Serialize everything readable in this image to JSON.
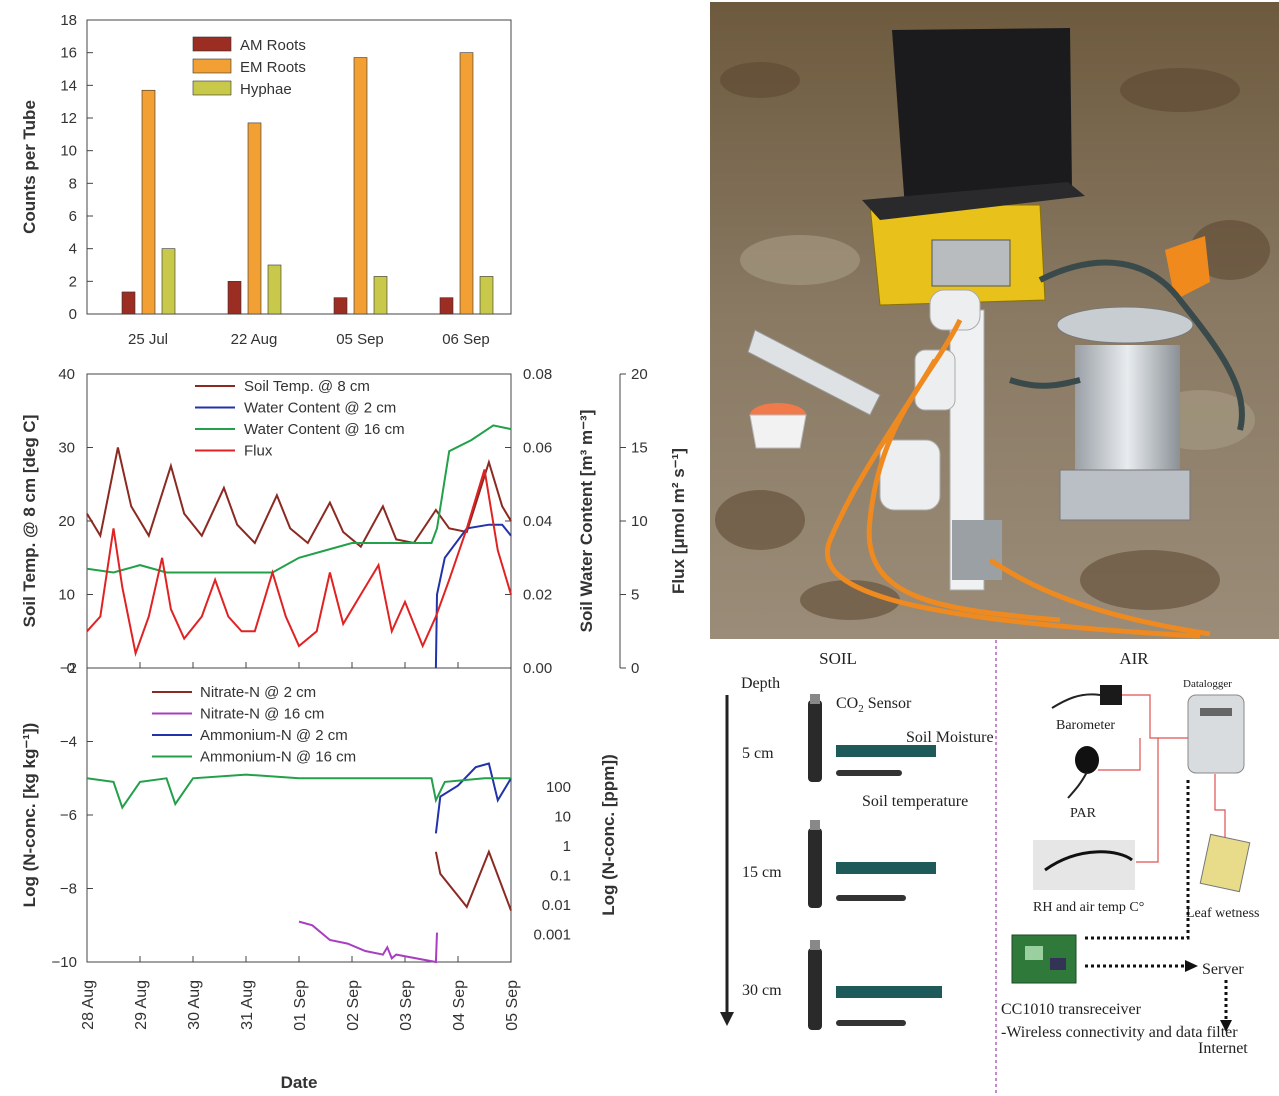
{
  "chart_data": [
    {
      "type": "bar",
      "categories": [
        "25 Jul",
        "22 Aug",
        "05 Sep",
        "06 Sep"
      ],
      "series": [
        {
          "name": "AM Roots",
          "values": [
            1.35,
            2.0,
            1.0,
            1.0
          ],
          "color": "#9b2d22"
        },
        {
          "name": "EM Roots",
          "values": [
            13.7,
            11.7,
            15.7,
            16.0
          ],
          "color": "#f2a033"
        },
        {
          "name": "Hyphae",
          "values": [
            4.0,
            3.0,
            2.3,
            2.3
          ],
          "color": "#c8c84a"
        }
      ],
      "xlabel": "",
      "ylabel": "Counts per Tube",
      "ylim": [
        0,
        18
      ],
      "yticks": [
        0,
        2,
        4,
        6,
        8,
        10,
        12,
        14,
        16,
        18
      ],
      "legend": "top-left",
      "grid": false
    },
    {
      "type": "line",
      "x_ticks": [
        "28 Aug",
        "29 Aug",
        "30 Aug",
        "31 Aug",
        "01 Sep",
        "02 Sep",
        "03 Sep",
        "04 Sep",
        "05 Sep"
      ],
      "left_axis": {
        "label": "Soil Temp. @ 8 cm [deg C]",
        "ylim": [
          0,
          40
        ],
        "ticks": [
          0,
          10,
          20,
          30,
          40
        ]
      },
      "right_axis_1": {
        "label": "Soil Water Content [m³ m⁻³]",
        "ylim": [
          0,
          0.08
        ],
        "ticks": [
          "0.00",
          "0.02",
          "0.04",
          "0.06",
          "0.08"
        ]
      },
      "right_axis_2": {
        "label": "Flux [μmol m² s⁻¹]",
        "ylim": [
          0,
          20
        ],
        "ticks": [
          0,
          5,
          10,
          15,
          20
        ]
      },
      "series": [
        {
          "name": "Soil Temp. @ 8 cm",
          "color": "#8b2a22",
          "axis": "left",
          "x": [
            "28 Aug 00:00",
            "28 Aug 06:00",
            "28 Aug 14:00",
            "28 Aug 20:00",
            "29 Aug 04:00",
            "29 Aug 14:00",
            "29 Aug 20:00",
            "30 Aug 04:00",
            "30 Aug 14:00",
            "30 Aug 20:00",
            "31 Aug 04:00",
            "31 Aug 14:00",
            "31 Aug 20:00",
            "01 Sep 04:00",
            "01 Sep 14:00",
            "01 Sep 20:00",
            "02 Sep 04:00",
            "02 Sep 14:00",
            "02 Sep 20:00",
            "03 Sep 04:00",
            "03 Sep 14:00",
            "03 Sep 20:00",
            "04 Sep 04:00",
            "04 Sep 14:00",
            "04 Sep 20:00",
            "05 Sep 00:00"
          ],
          "y": [
            21,
            18,
            30,
            22,
            18,
            27.5,
            21,
            18,
            24.5,
            19.5,
            17,
            23.5,
            19,
            17,
            22.5,
            18.5,
            16.5,
            22,
            17.5,
            17,
            21.5,
            19,
            18.5,
            28,
            22,
            20
          ]
        },
        {
          "name": "Water Content @ 2 cm",
          "color": "#2233aa",
          "axis": "right_1",
          "x": [
            "03 Sep 14:00",
            "03 Sep 14:30",
            "03 Sep 18:00",
            "04 Sep 04:00",
            "04 Sep 14:00",
            "04 Sep 20:00",
            "05 Sep 00:00"
          ],
          "y": [
            0.0,
            0.02,
            0.03,
            0.038,
            0.039,
            0.039,
            0.036
          ]
        },
        {
          "name": "Water Content @ 16 cm",
          "color": "#22a04a",
          "axis": "right_1",
          "x": [
            "28 Aug 00:00",
            "28 Aug 12:00",
            "29 Aug 00:00",
            "29 Aug 12:00",
            "30 Aug 00:00",
            "30 Aug 12:00",
            "31 Aug 00:00",
            "31 Aug 12:00",
            "01 Sep 00:00",
            "01 Sep 12:00",
            "02 Sep 00:00",
            "02 Sep 12:00",
            "03 Sep 00:00",
            "03 Sep 12:00",
            "03 Sep 14:30",
            "03 Sep 20:00",
            "04 Sep 06:00",
            "04 Sep 16:00",
            "05 Sep 00:00"
          ],
          "y": [
            0.027,
            0.026,
            0.028,
            0.026,
            0.026,
            0.026,
            0.026,
            0.026,
            0.03,
            0.032,
            0.034,
            0.034,
            0.034,
            0.034,
            0.038,
            0.059,
            0.062,
            0.066,
            0.065
          ]
        },
        {
          "name": "Flux",
          "color": "#e02222",
          "axis": "right_2",
          "x": [
            "28 Aug 00:00",
            "28 Aug 06:00",
            "28 Aug 12:00",
            "28 Aug 16:00",
            "28 Aug 22:00",
            "29 Aug 04:00",
            "29 Aug 10:00",
            "29 Aug 14:00",
            "29 Aug 20:00",
            "30 Aug 04:00",
            "30 Aug 10:00",
            "30 Aug 16:00",
            "30 Aug 22:00",
            "31 Aug 04:00",
            "31 Aug 12:00",
            "31 Aug 18:00",
            "01 Sep 00:00",
            "01 Sep 08:00",
            "01 Sep 14:00",
            "01 Sep 20:00",
            "02 Sep 04:00",
            "02 Sep 12:00",
            "02 Sep 18:00",
            "03 Sep 00:00",
            "03 Sep 08:00",
            "03 Sep 14:00",
            "03 Sep 20:00",
            "04 Sep 04:00",
            "04 Sep 12:00",
            "04 Sep 18:00",
            "05 Sep 00:00"
          ],
          "y": [
            2.5,
            3.5,
            9.5,
            5.5,
            1.0,
            3.5,
            7.5,
            4.0,
            2.0,
            3.5,
            6.0,
            3.5,
            2.5,
            2.5,
            6.5,
            3.5,
            1.5,
            2.5,
            6.5,
            3.0,
            5.0,
            7.0,
            2.5,
            4.5,
            1.5,
            3.5,
            6.0,
            9.5,
            13.5,
            8.0,
            5.0
          ]
        }
      ],
      "legend": "top-center",
      "grid": false
    },
    {
      "type": "line",
      "x_ticks": [
        "28 Aug",
        "29 Aug",
        "30 Aug",
        "31 Aug",
        "01 Sep",
        "02 Sep",
        "03 Sep",
        "04 Sep",
        "05 Sep"
      ],
      "left_axis": {
        "label": "Log (N-conc. [kg kg⁻¹])",
        "ylim": [
          -10,
          -2
        ],
        "ticks": [
          -2,
          -4,
          -6,
          -8,
          -10
        ]
      },
      "right_axis": {
        "label": "Log (N-conc. [ppm])",
        "ticks": [
          "100",
          "10",
          "1",
          "0.1",
          "0.01",
          "0.001"
        ]
      },
      "series": [
        {
          "name": "Nitrate-N @ 2 cm",
          "color": "#8b2a22",
          "x": [
            "03 Sep 14:00",
            "03 Sep 16:00",
            "04 Sep 00:00",
            "04 Sep 04:00",
            "04 Sep 10:00",
            "04 Sep 14:00",
            "05 Sep 00:00"
          ],
          "y": [
            -7.0,
            -7.6,
            -8.2,
            -8.5,
            -7.6,
            -7.0,
            -8.6
          ]
        },
        {
          "name": "Nitrate-N @ 16 cm",
          "color": "#a83ec0",
          "x": [
            "01 Sep 00:00",
            "01 Sep 06:00",
            "01 Sep 14:00",
            "01 Sep 22:00",
            "02 Sep 06:00",
            "02 Sep 14:00",
            "02 Sep 16:00",
            "02 Sep 18:00",
            "02 Sep 20:00",
            "03 Sep 14:00",
            "03 Sep 14:30"
          ],
          "y": [
            -8.9,
            -9.0,
            -9.4,
            -9.5,
            -9.7,
            -9.8,
            -9.6,
            -9.9,
            -9.8,
            -10.0,
            -9.2
          ]
        },
        {
          "name": "Ammonium-N @ 2 cm",
          "color": "#2233aa",
          "x": [
            "03 Sep 14:00",
            "03 Sep 16:00",
            "04 Sep 00:00",
            "04 Sep 08:00",
            "04 Sep 14:00",
            "04 Sep 18:00",
            "05 Sep 00:00"
          ],
          "y": [
            -6.5,
            -5.5,
            -5.2,
            -4.7,
            -4.6,
            -5.6,
            -5.0
          ]
        },
        {
          "name": "Ammonium-N @ 16 cm",
          "color": "#22a04a",
          "x": [
            "28 Aug 00:00",
            "28 Aug 12:00",
            "28 Aug 16:00",
            "29 Aug 00:00",
            "29 Aug 12:00",
            "29 Aug 16:00",
            "30 Aug 00:00",
            "31 Aug 00:00",
            "01 Sep 00:00",
            "02 Sep 00:00",
            "03 Sep 00:00",
            "03 Sep 12:00",
            "03 Sep 14:00",
            "03 Sep 18:00",
            "04 Sep 12:00",
            "05 Sep 00:00"
          ],
          "y": [
            -5.0,
            -5.1,
            -5.8,
            -5.1,
            -5.0,
            -5.7,
            -5.0,
            -4.9,
            -5.0,
            -5.0,
            -5.0,
            -5.0,
            -5.6,
            -5.1,
            -5.0,
            -5.0
          ]
        }
      ],
      "xlabel": "Date",
      "legend": "top-center",
      "grid": false
    }
  ],
  "photo": {
    "description_tag": "field-sensor-photo"
  },
  "diagram": {
    "soil_header": "SOIL",
    "air_header": "AIR",
    "depth_label": "Depth",
    "depths": [
      "5 cm",
      "15 cm",
      "30 cm"
    ],
    "co2_sensor_prefix": "CO",
    "co2_sensor_sub": "2",
    "co2_sensor_suffix": " Sensor",
    "soil_moisture": "Soil Moisture",
    "soil_temperature": "Soil temperature",
    "barometer": "Barometer",
    "datalogger": "Datalogger",
    "par": "PAR",
    "rh": "RH and air temp C°",
    "leaf_wetness": "Leaf wetness",
    "server": "Server",
    "internet": "Internet",
    "transceiver": "CC1010 transreceiver",
    "transceiver_desc": "-Wireless connectivity and data filter"
  }
}
